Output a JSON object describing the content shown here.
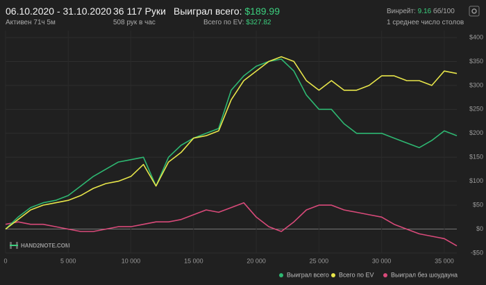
{
  "header": {
    "date_range": "06.10.2020 - 31.10.2020",
    "active": "Активен 71ч 5м",
    "hands": "36 117 Руки",
    "hands_per_hour": "508 рук в час",
    "won_label": "Выиграл всего:",
    "won_value": "$189.99",
    "ev_label": "Всего по EV:",
    "ev_value": "$327.82",
    "winrate_label": "Винрейт:",
    "winrate_value": "9.16",
    "winrate_unit": "бб/100",
    "tables": "1 среднее число столов"
  },
  "watermark": "HAND2NOTE.COM",
  "chart_data": {
    "type": "line",
    "x": [
      0,
      1000,
      2000,
      3000,
      4000,
      5000,
      6000,
      7000,
      8000,
      9000,
      10000,
      11000,
      12000,
      13000,
      14000,
      15000,
      16000,
      17000,
      18000,
      19000,
      20000,
      21000,
      22000,
      23000,
      24000,
      25000,
      26000,
      27000,
      28000,
      29000,
      30000,
      31000,
      32000,
      33000,
      34000,
      35000,
      36000
    ],
    "series": [
      {
        "name": "Выиграл без шоудауна",
        "color": "#d94a7a",
        "values": [
          10,
          15,
          10,
          10,
          5,
          0,
          -5,
          -5,
          0,
          5,
          5,
          10,
          15,
          15,
          20,
          30,
          40,
          35,
          45,
          55,
          25,
          5,
          -5,
          15,
          40,
          50,
          50,
          40,
          35,
          30,
          25,
          10,
          0,
          -10,
          -15,
          -20,
          -35
        ]
      },
      {
        "name": "Выиграл всего",
        "color": "#2eb872",
        "values": [
          0,
          25,
          45,
          55,
          60,
          70,
          90,
          110,
          125,
          140,
          145,
          150,
          90,
          150,
          175,
          190,
          200,
          210,
          290,
          320,
          340,
          350,
          355,
          330,
          280,
          250,
          250,
          220,
          200,
          200,
          200,
          190,
          180,
          170,
          185,
          205,
          195
        ]
      },
      {
        "name": "Всего по EV",
        "color": "#e8e64a",
        "values": [
          0,
          20,
          40,
          50,
          55,
          60,
          70,
          85,
          95,
          100,
          110,
          135,
          90,
          140,
          160,
          190,
          195,
          205,
          270,
          310,
          330,
          350,
          360,
          350,
          310,
          290,
          310,
          290,
          290,
          300,
          320,
          320,
          310,
          310,
          300,
          330,
          325
        ]
      }
    ],
    "xlim": [
      0,
      36000
    ],
    "ylim": [
      -50,
      400
    ],
    "xticks": [
      0,
      {
        "value": 5000,
        "label": "5 000"
      },
      {
        "value": 10000,
        "label": "10 000"
      },
      {
        "value": 15000,
        "label": "15 000"
      },
      {
        "value": 20000,
        "label": "20 000"
      },
      {
        "value": 25000,
        "label": "25 000"
      },
      {
        "value": 30000,
        "label": "30 000"
      },
      {
        "value": 35000,
        "label": "35 000"
      }
    ],
    "yticks": [
      {
        "value": -50,
        "label": "-$50"
      },
      {
        "value": 0,
        "label": "$0"
      },
      {
        "value": 50,
        "label": "$50"
      },
      {
        "value": 100,
        "label": "$100"
      },
      {
        "value": 150,
        "label": "$150"
      },
      {
        "value": 200,
        "label": "$200"
      },
      {
        "value": 250,
        "label": "$250"
      },
      {
        "value": 300,
        "label": "$300"
      },
      {
        "value": 350,
        "label": "$350"
      },
      {
        "value": 400,
        "label": "$400"
      }
    ],
    "grid": true
  }
}
